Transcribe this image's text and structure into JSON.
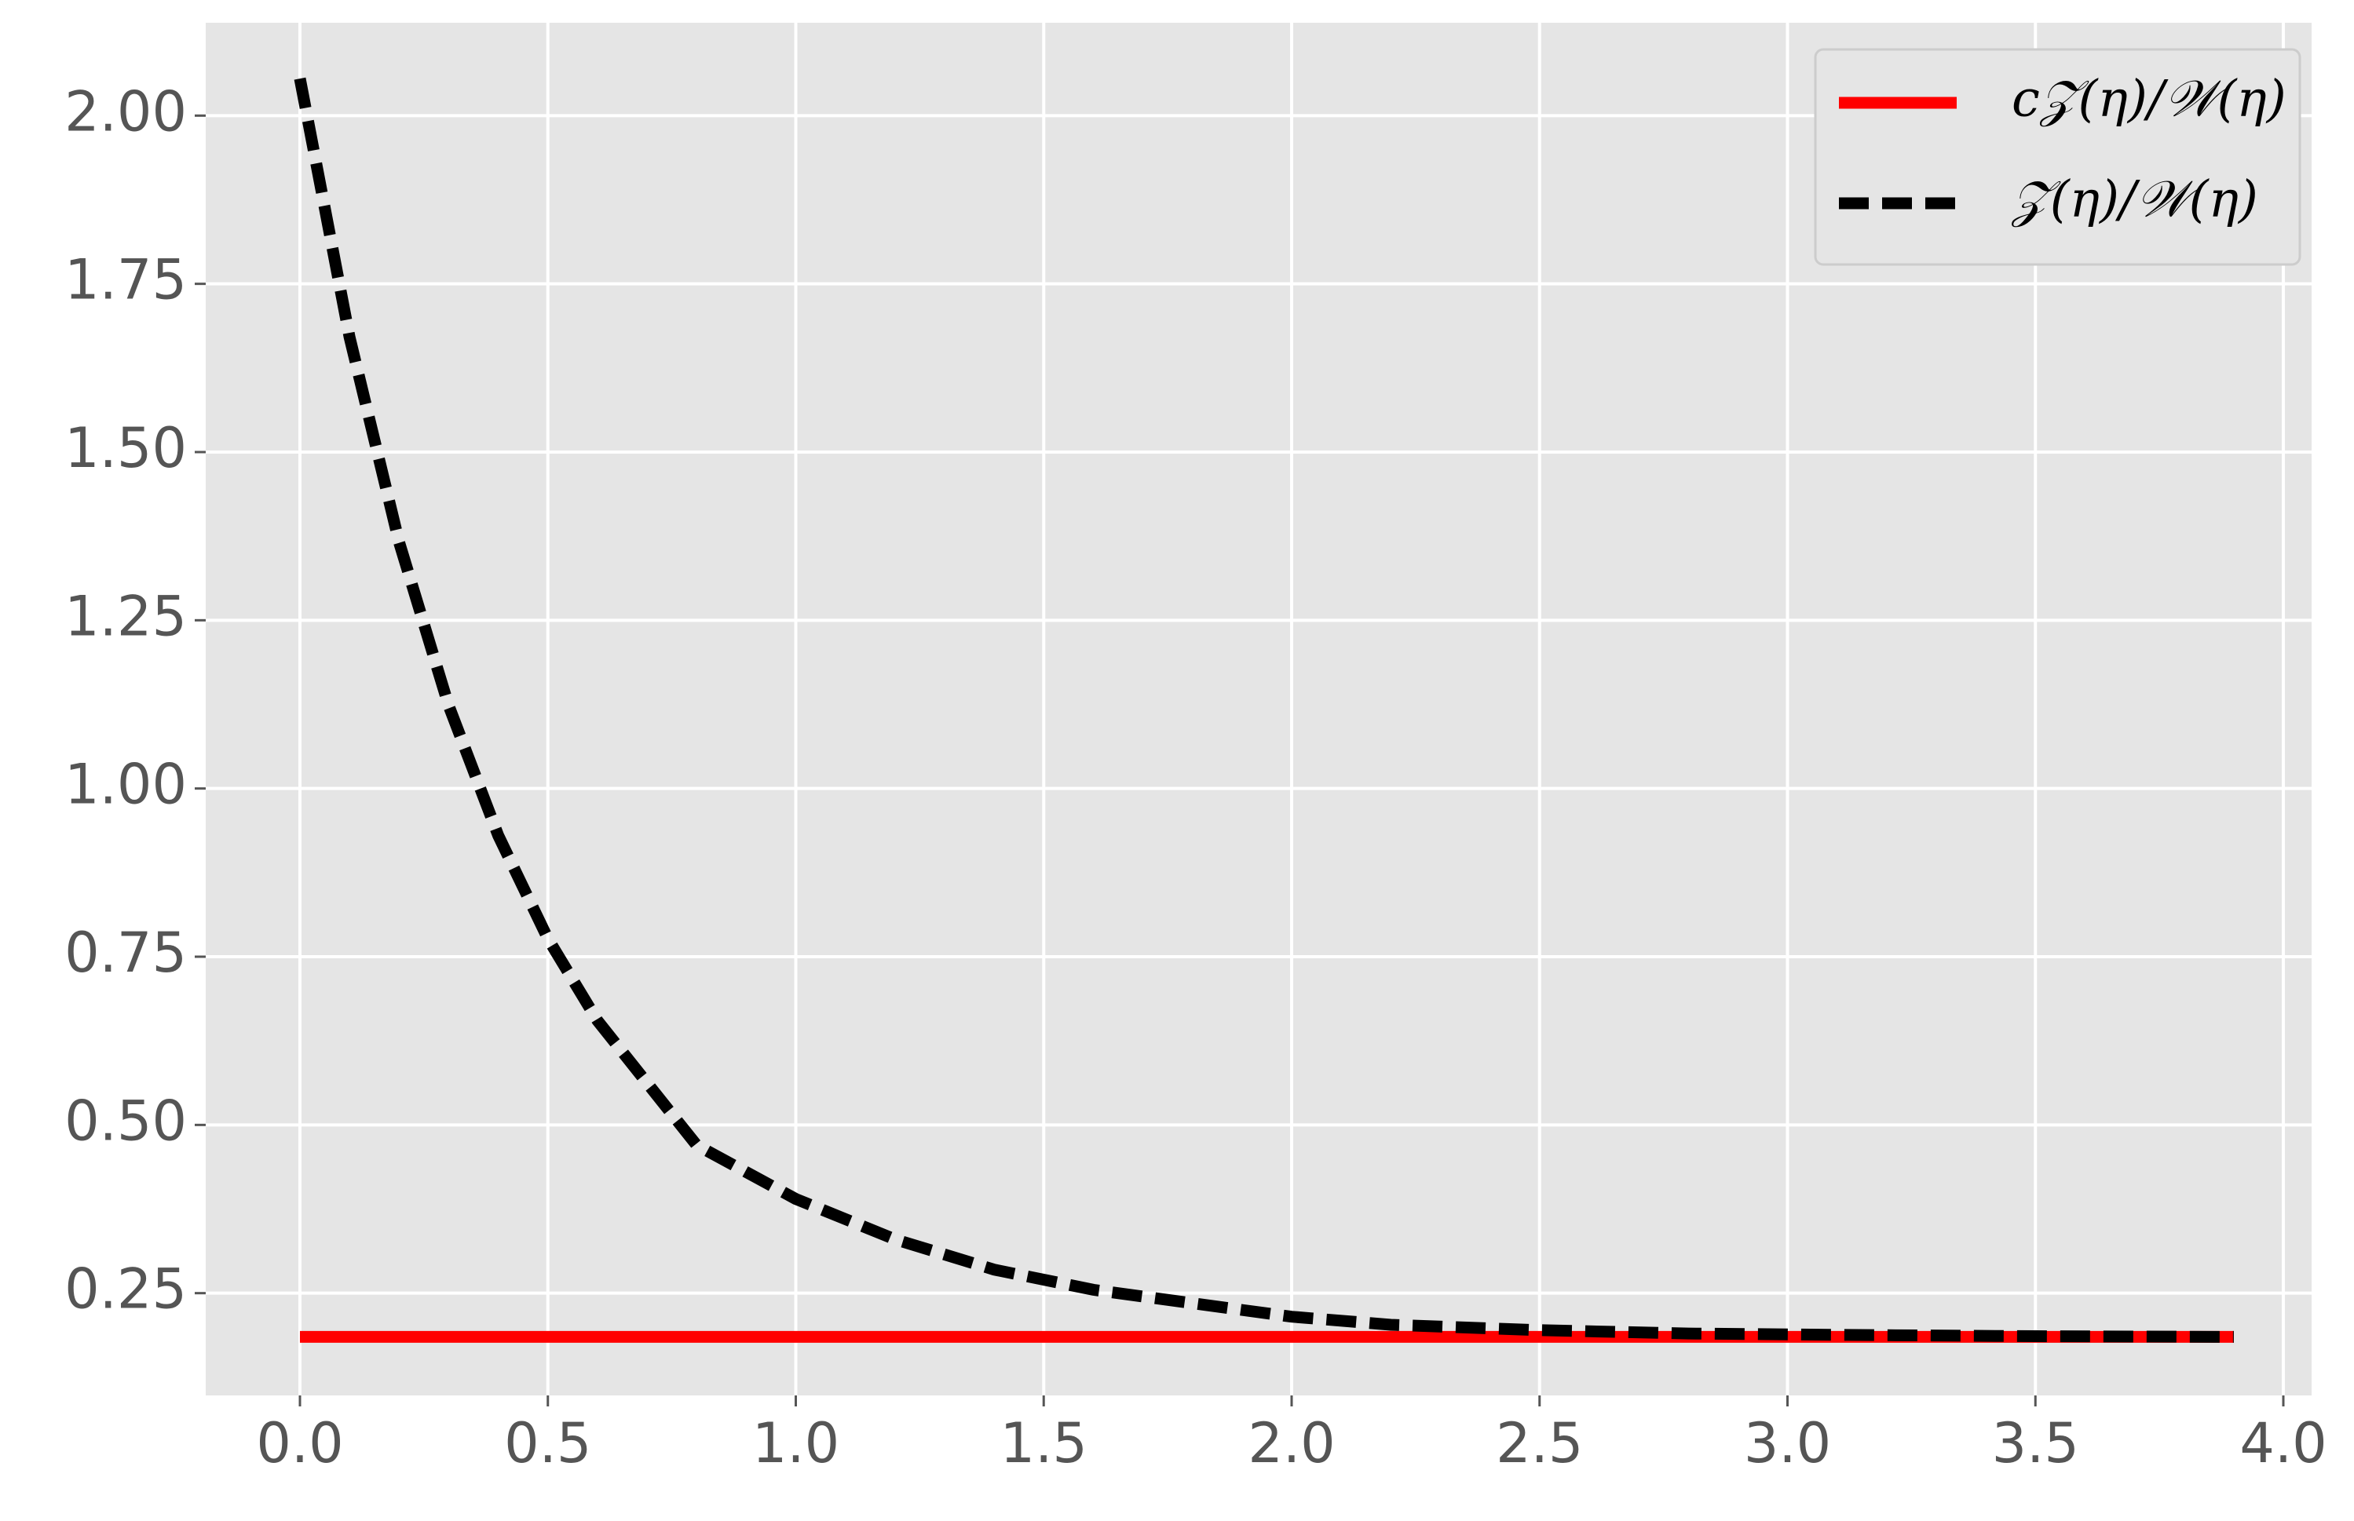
{
  "chart_data": {
    "type": "line",
    "x": [
      0,
      0.1,
      0.2,
      0.3,
      0.4,
      0.5,
      0.6,
      0.8,
      1.0,
      1.2,
      1.4,
      1.6,
      1.8,
      2.0,
      2.2,
      2.5,
      2.8,
      3.1,
      3.5,
      3.9
    ],
    "series": [
      {
        "name": "c𝒵(η)/𝒲(η)",
        "color": "#ff0000",
        "dash": false,
        "values": [
          0.185,
          0.185,
          0.185,
          0.185,
          0.185,
          0.185,
          0.185,
          0.185,
          0.185,
          0.185,
          0.185,
          0.185,
          0.185,
          0.185,
          0.185,
          0.185,
          0.185,
          0.185,
          0.185,
          0.185
        ]
      },
      {
        "name": "𝒵(η)/𝒲(η)",
        "color": "#000000",
        "dash": true,
        "values": [
          2.055,
          1.671,
          1.366,
          1.123,
          0.93,
          0.777,
          0.655,
          0.47,
          0.39,
          0.33,
          0.285,
          0.255,
          0.235,
          0.215,
          0.203,
          0.195,
          0.19,
          0.188,
          0.186,
          0.185
        ]
      }
    ],
    "xlim": [
      -0.19,
      4.057
    ],
    "ylim": [
      0.098,
      2.138
    ],
    "xticks": [
      {
        "value": 0,
        "label": "0.0"
      },
      0.5,
      {
        "value": 1,
        "label": "1.0"
      },
      1.5,
      {
        "value": 2,
        "label": "2.0"
      },
      2.5,
      {
        "value": 3,
        "label": "3.0"
      },
      3.5,
      {
        "value": 4,
        "label": "4.0"
      }
    ],
    "yticks": [
      0.25,
      {
        "value": 0.5,
        "label": "0.50"
      },
      0.75,
      {
        "value": 1,
        "label": "1.00"
      },
      1.25,
      {
        "value": 1.5,
        "label": "1.50"
      },
      1.75,
      {
        "value": 2,
        "label": "2.00"
      }
    ],
    "grid": true,
    "legend": "upper right"
  }
}
